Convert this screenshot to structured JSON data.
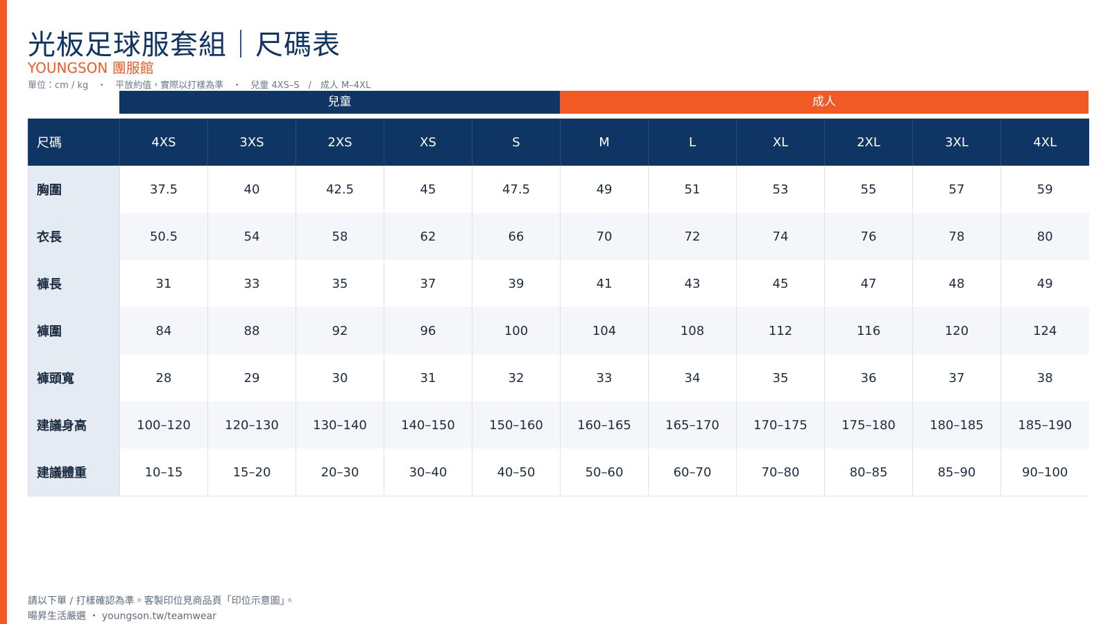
{
  "header": {
    "title": "光板足球服套組｜尺碼表",
    "brand": "YOUNGSON 團服館",
    "note": "單位：cm / kg　・　平放約值，實際以打樣為準　・　兒童 4XS–S　/　成人 M–4XL"
  },
  "groups": {
    "kids": "兒童",
    "adults": "成人"
  },
  "table": {
    "columns": [
      "尺碼",
      "4XS",
      "3XS",
      "2XS",
      "XS",
      "S",
      "M",
      "L",
      "XL",
      "2XL",
      "3XL",
      "4XL"
    ],
    "rows": [
      [
        "胸圍",
        "37.5",
        "40",
        "42.5",
        "45",
        "47.5",
        "49",
        "51",
        "53",
        "55",
        "57",
        "59"
      ],
      [
        "衣長",
        "50.5",
        "54",
        "58",
        "62",
        "66",
        "70",
        "72",
        "74",
        "76",
        "78",
        "80"
      ],
      [
        "褲長",
        "31",
        "33",
        "35",
        "37",
        "39",
        "41",
        "43",
        "45",
        "47",
        "48",
        "49"
      ],
      [
        "褲圍",
        "84",
        "88",
        "92",
        "96",
        "100",
        "104",
        "108",
        "112",
        "116",
        "120",
        "124"
      ],
      [
        "褲頭寬",
        "28",
        "29",
        "30",
        "31",
        "32",
        "33",
        "34",
        "35",
        "36",
        "37",
        "38"
      ],
      [
        "建議身高",
        "100–120",
        "120–130",
        "130–140",
        "140–150",
        "150–160",
        "160–165",
        "165–170",
        "170–175",
        "175–180",
        "180–185",
        "185–190"
      ],
      [
        "建議體重",
        "10–15",
        "15–20",
        "20–30",
        "30–40",
        "40–50",
        "50–60",
        "60–70",
        "70–80",
        "80–85",
        "85–90",
        "90–100"
      ]
    ]
  },
  "footer": {
    "line1": "請以下單 / 打樣確認為準。客製印位見商品頁「印位示意圖」。",
    "line2": "暘昇生活嚴選 ・ youngson.tw/teamwear"
  }
}
